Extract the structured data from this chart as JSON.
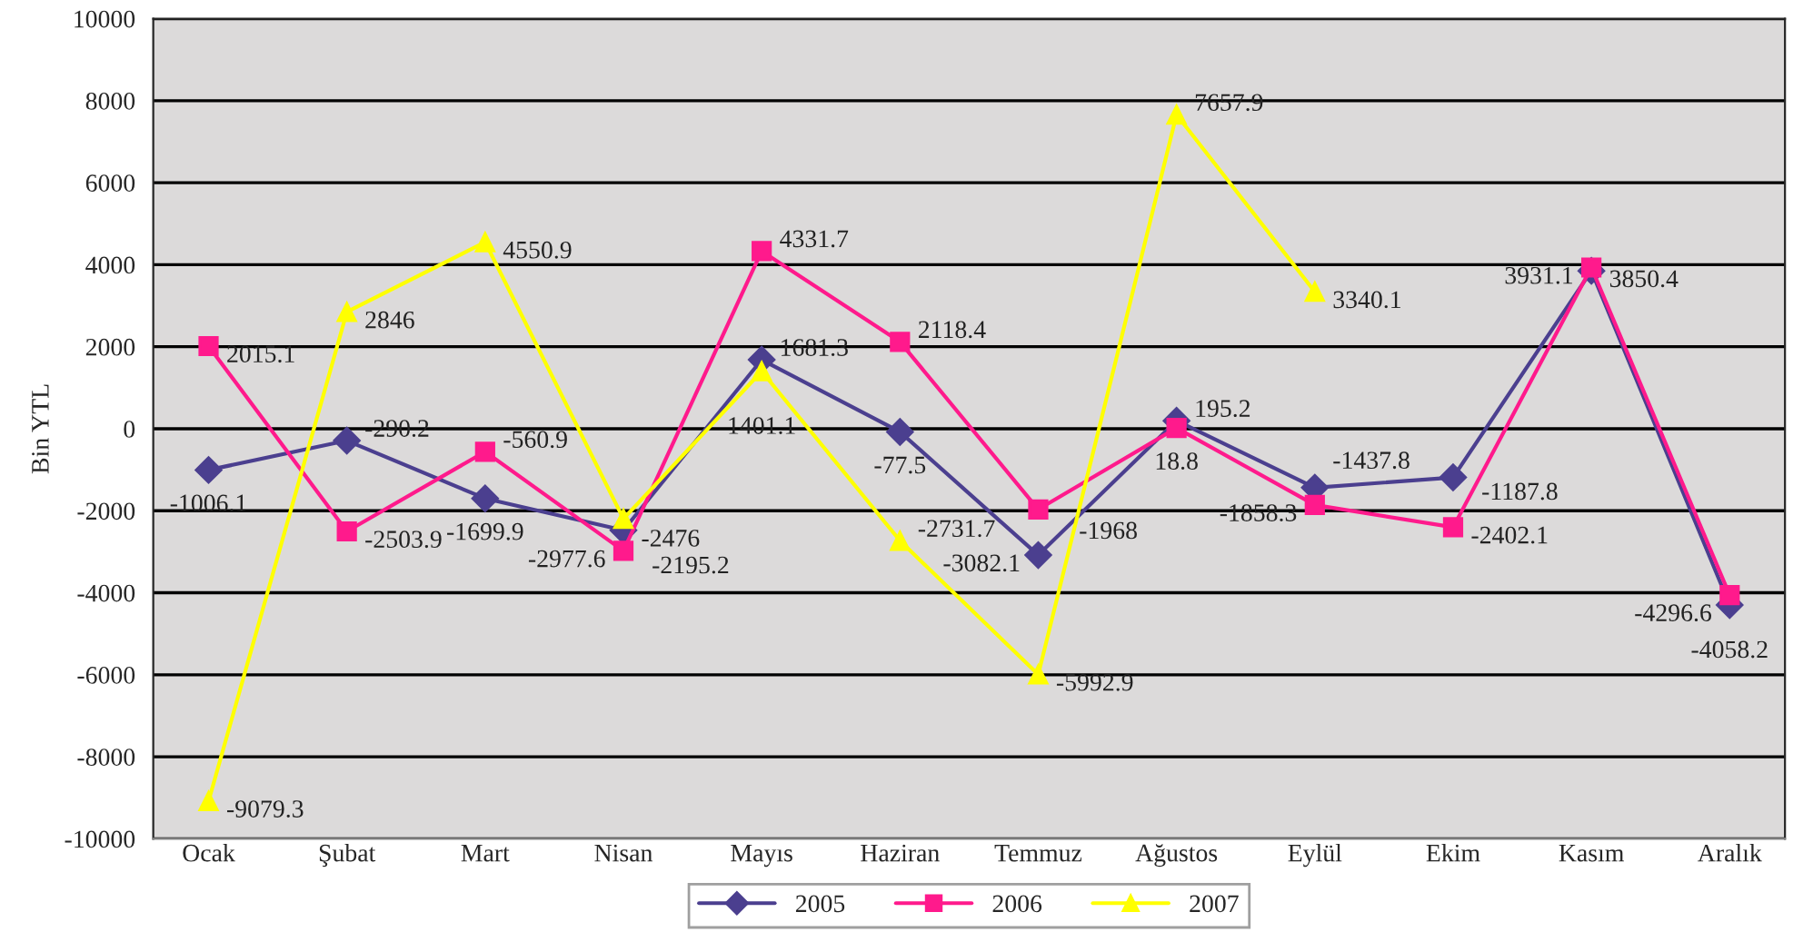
{
  "chart_data": {
    "type": "line",
    "ylabel": "Bin YTL",
    "categories": [
      "Ocak",
      "Şubat",
      "Mart",
      "Nisan",
      "Mayıs",
      "Haziran",
      "Temmuz",
      "Ağustos",
      "Eylül",
      "Ekim",
      "Kasım",
      "Aralık"
    ],
    "series": [
      {
        "name": "2005",
        "color": "#4b3f8f",
        "marker": "diamond",
        "values": [
          -1006.1,
          -290.2,
          -1699.9,
          -2476,
          1681.3,
          -77.5,
          -3082.1,
          195.2,
          -1437.8,
          -1187.8,
          3850.4,
          -4296.6
        ]
      },
      {
        "name": "2006",
        "color": "#ff1a8c",
        "marker": "square",
        "values": [
          2015.1,
          -2503.9,
          -560.9,
          -2977.6,
          4331.7,
          2118.4,
          -1968,
          18.8,
          -1858.3,
          -2402.1,
          3931.1,
          -4058.2
        ]
      },
      {
        "name": "2007",
        "color": "#ffff00",
        "marker": "triangle",
        "values": [
          -9079.3,
          2846,
          4550.9,
          -2195.2,
          1401.1,
          -2731.7,
          -5992.9,
          7657.9,
          3340.1,
          null,
          null,
          null
        ]
      }
    ],
    "ylim": [
      -10000,
      10000
    ],
    "yticks": [
      -10000,
      -8000,
      -6000,
      -4000,
      -2000,
      0,
      2000,
      4000,
      6000,
      8000,
      10000
    ],
    "grid": "y",
    "legend": "bottom",
    "data_labels": true
  }
}
